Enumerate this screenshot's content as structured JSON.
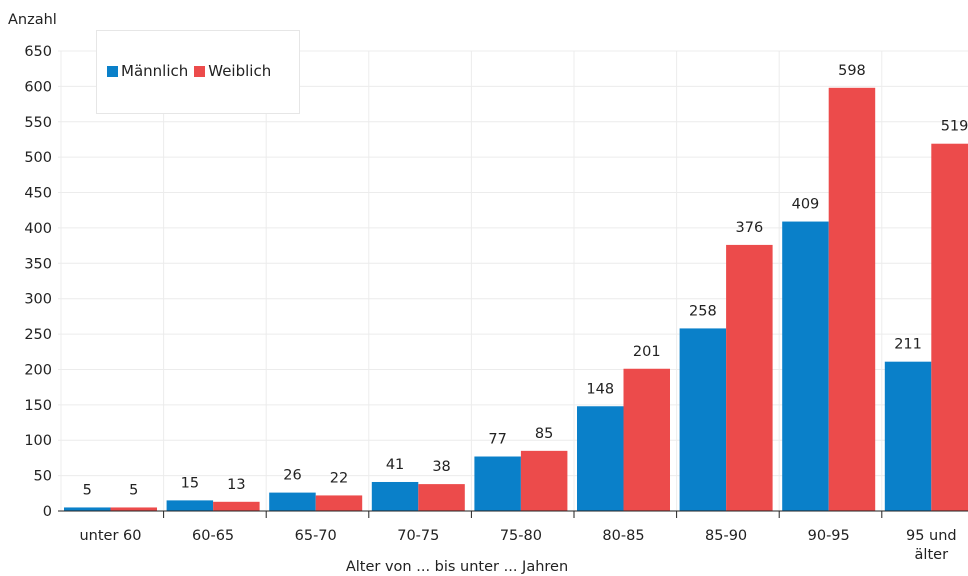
{
  "colors": {
    "male": "#0a80c9",
    "female": "#ec4b4b"
  },
  "legend": {
    "male": "Männlich",
    "female": "Weiblich"
  },
  "chart_data": {
    "type": "bar",
    "ylabel": "Anzahl",
    "xlabel": "Alter von ... bis unter ... Jahren",
    "ylim": [
      0,
      650
    ],
    "yticks": [
      0,
      50,
      100,
      150,
      200,
      250,
      300,
      350,
      400,
      450,
      500,
      550,
      600,
      650
    ],
    "grid": true,
    "legend_position": "top-left",
    "categories": [
      [
        "unter 60"
      ],
      [
        "60-65"
      ],
      [
        "65-70"
      ],
      [
        "70-75"
      ],
      [
        "75-80"
      ],
      [
        "80-85"
      ],
      [
        "85-90"
      ],
      [
        "90-95"
      ],
      [
        "95 und",
        "älter"
      ]
    ],
    "series": [
      {
        "name": "Männlich",
        "values": [
          5,
          15,
          26,
          41,
          77,
          148,
          258,
          409,
          211
        ]
      },
      {
        "name": "Weiblich",
        "values": [
          5,
          13,
          22,
          38,
          85,
          201,
          376,
          598,
          519
        ]
      }
    ]
  }
}
